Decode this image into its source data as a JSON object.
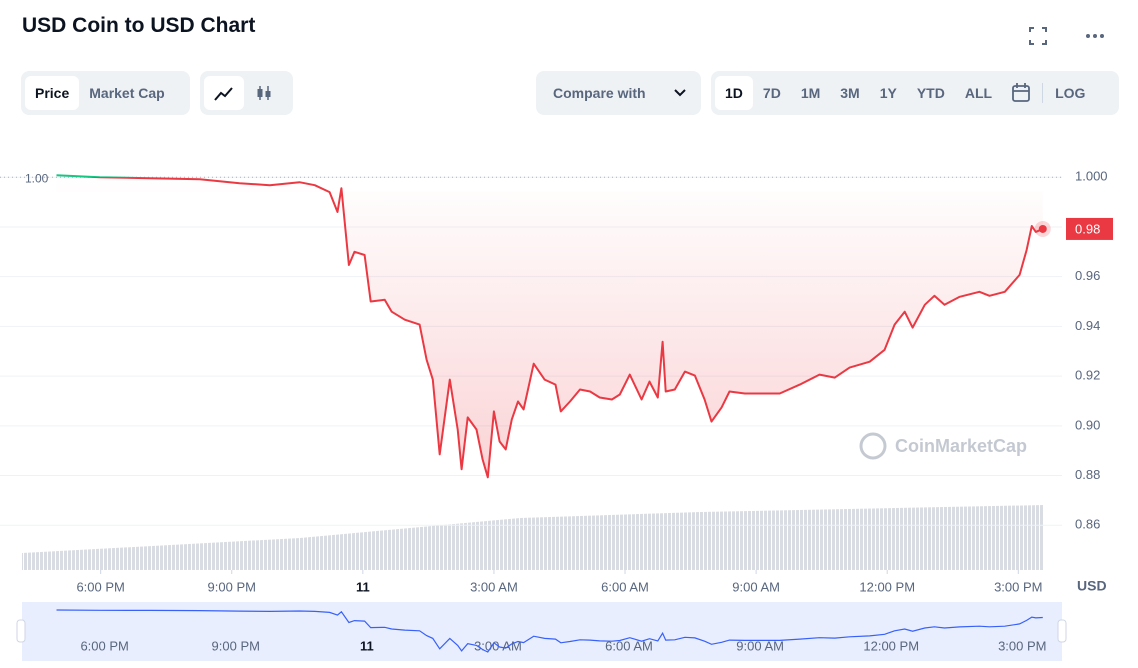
{
  "toolbar": {
    "metric_tabs": [
      "Price",
      "Market Cap"
    ],
    "compare": "Compare with",
    "ranges": [
      "1D",
      "7D",
      "1M",
      "3M",
      "1Y",
      "YTD",
      "ALL"
    ],
    "log": "LOG"
  },
  "chart_data": {
    "type": "line",
    "title": "USD Coin to USD Chart",
    "y_label": "USD",
    "watermark": "CoinMarketCap",
    "reference": {
      "value": 1,
      "label": "1.00"
    },
    "x": [
      16.99,
      17.98,
      19.12,
      20.27,
      21.18,
      21.87,
      22.55,
      22.9,
      23.24,
      23.42,
      23.51,
      23.68,
      23.81,
      24.04,
      24.18,
      24.5,
      24.66,
      24.96,
      25.3,
      25.46,
      25.6,
      25.76,
      25.99,
      26.17,
      26.26,
      26.4,
      26.6,
      26.74,
      26.86,
      27.0,
      27.13,
      27.27,
      27.41,
      27.55,
      27.68,
      27.91,
      28.16,
      28.41,
      28.53,
      28.74,
      28.97,
      29.2,
      29.42,
      29.7,
      29.88,
      30.11,
      30.38,
      30.56,
      30.75,
      30.86,
      30.93,
      31.14,
      31.37,
      31.6,
      31.82,
      31.98,
      32.21,
      32.39,
      32.74,
      33.08,
      33.54,
      34.0,
      34.45,
      34.8,
      35.14,
      35.6,
      35.94,
      36.17,
      36.4,
      36.58,
      36.86,
      37.08,
      37.31,
      37.66,
      38.11,
      38.34,
      38.69,
      39.03,
      39.19,
      39.31,
      39.4,
      39.56
    ],
    "values": [
      1.0008,
      1.0,
      0.9996,
      0.9992,
      0.9976,
      0.9968,
      0.998,
      0.9968,
      0.994,
      0.986,
      0.9956,
      0.9647,
      0.97,
      0.9687,
      0.95,
      0.9507,
      0.9459,
      0.9427,
      0.9407,
      0.9266,
      0.9186,
      0.8885,
      0.9186,
      0.8985,
      0.8825,
      0.9034,
      0.8985,
      0.8865,
      0.8793,
      0.9058,
      0.8937,
      0.8905,
      0.9026,
      0.9098,
      0.9066,
      0.925,
      0.9186,
      0.9166,
      0.9058,
      0.9098,
      0.9146,
      0.9138,
      0.9114,
      0.9106,
      0.9126,
      0.9206,
      0.9106,
      0.9178,
      0.9114,
      0.9338,
      0.9138,
      0.9146,
      0.9218,
      0.9202,
      0.9106,
      0.9017,
      0.9074,
      0.9138,
      0.913,
      0.913,
      0.913,
      0.9166,
      0.9206,
      0.9194,
      0.9234,
      0.9258,
      0.9306,
      0.9407,
      0.9459,
      0.9395,
      0.9487,
      0.9523,
      0.9487,
      0.9519,
      0.9539,
      0.9523,
      0.9539,
      0.9607,
      0.9707,
      0.9804,
      0.978,
      0.9792
    ],
    "value_labels": [
      null,
      null,
      null,
      null,
      null,
      null,
      null,
      null,
      null,
      null,
      null,
      null,
      null,
      null,
      null,
      null,
      null,
      null,
      null,
      null,
      null,
      null,
      null,
      null,
      null,
      null,
      null,
      null,
      null,
      null,
      null,
      null,
      null,
      null,
      null,
      null,
      null,
      null,
      null,
      null,
      null,
      null,
      null,
      null,
      null,
      null,
      null,
      null,
      null,
      null,
      null,
      null,
      null,
      null,
      null,
      null,
      null,
      null,
      null,
      null,
      null,
      null,
      null,
      null,
      null,
      null,
      null,
      null,
      null,
      null,
      null,
      null,
      null,
      null,
      null,
      null,
      null,
      null,
      null,
      null,
      null,
      "0.98"
    ],
    "up_color": "#16c784",
    "down_color": "#ea3943",
    "navigator_color": "#3861fb",
    "xlim": [
      16.2,
      40
    ],
    "ylim": [
      0.842,
      1.019
    ],
    "xticks": [
      {
        "value": 18,
        "label": "6:00 PM"
      },
      {
        "value": 21,
        "label": "9:00 PM"
      },
      {
        "value": 24,
        "label": "11"
      },
      {
        "value": 27,
        "label": "3:00 AM"
      },
      {
        "value": 30,
        "label": "6:00 AM"
      },
      {
        "value": 33,
        "label": "9:00 AM"
      },
      {
        "value": 36,
        "label": "12:00 PM"
      },
      {
        "value": 39,
        "label": "3:00 PM"
      }
    ],
    "yticks": [
      0.86,
      0.88,
      {
        "value": 0.9,
        "label": "0.90"
      },
      0.92,
      0.94,
      0.96,
      0.98,
      {
        "value": 1,
        "label": "1.000"
      }
    ],
    "grid": true
  }
}
